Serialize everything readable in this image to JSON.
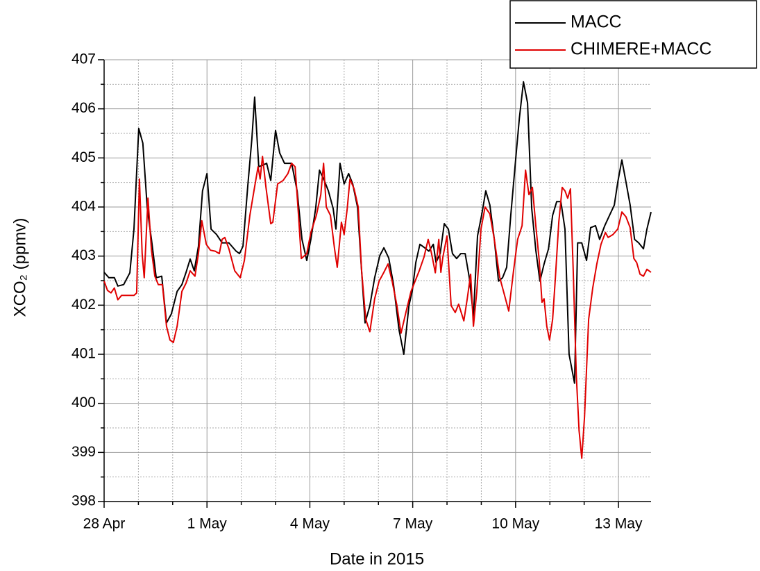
{
  "chart_data": {
    "type": "line",
    "x_label": "Date in 2015",
    "y_label": "XCO₂ (ppmv)",
    "xlim": [
      0,
      15.95
    ],
    "ylim": [
      398,
      407
    ],
    "xticks": [
      {
        "value": 0,
        "label": "28 Apr"
      },
      {
        "value": 3,
        "label": "1 May"
      },
      {
        "value": 6,
        "label": "4 May"
      },
      {
        "value": 9,
        "label": "7 May"
      },
      {
        "value": 12,
        "label": "10 May"
      },
      {
        "value": 15,
        "label": "13 May"
      }
    ],
    "yticks": [
      398,
      399,
      400,
      401,
      402,
      403,
      404,
      405,
      406,
      407
    ],
    "minor_xticks": [
      1,
      2,
      4,
      5,
      7,
      8,
      10,
      11,
      13,
      14
    ],
    "minor_yticks": [
      398.5,
      399.5,
      400.5,
      401.5,
      402.5,
      403.5,
      404.5,
      405.5,
      406.5
    ],
    "grid": true,
    "legend": "top-right",
    "series": [
      {
        "name": "MACC",
        "color": "#000000",
        "x": [
          0,
          0.14,
          0.3,
          0.4,
          0.57,
          0.75,
          0.87,
          1.01,
          1.13,
          1.26,
          1.38,
          1.52,
          1.68,
          1.82,
          1.96,
          2.13,
          2.27,
          2.39,
          2.51,
          2.63,
          2.75,
          2.87,
          3.0,
          3.12,
          3.28,
          3.44,
          3.64,
          3.85,
          3.95,
          4.05,
          4.19,
          4.31,
          4.39,
          4.51,
          4.62,
          4.74,
          4.86,
          5.0,
          5.12,
          5.26,
          5.47,
          5.63,
          5.77,
          5.91,
          6.03,
          6.17,
          6.28,
          6.42,
          6.54,
          6.68,
          6.76,
          6.88,
          7.0,
          7.13,
          7.25,
          7.39,
          7.49,
          7.61,
          7.75,
          7.89,
          8.04,
          8.16,
          8.3,
          8.44,
          8.6,
          8.74,
          8.89,
          8.99,
          9.09,
          9.21,
          9.35,
          9.47,
          9.6,
          9.68,
          9.8,
          9.92,
          10.04,
          10.16,
          10.28,
          10.4,
          10.53,
          10.65,
          10.77,
          10.89,
          11.01,
          11.13,
          11.25,
          11.38,
          11.5,
          11.62,
          11.74,
          11.86,
          12.0,
          12.11,
          12.23,
          12.35,
          12.47,
          12.59,
          12.71,
          12.83,
          12.96,
          13.08,
          13.2,
          13.32,
          13.44,
          13.56,
          13.72,
          13.81,
          13.93,
          14.07,
          14.19,
          14.33,
          14.45,
          14.6,
          14.74,
          14.88,
          14.98,
          15.1,
          15.22,
          15.34,
          15.47,
          15.59,
          15.73,
          15.83,
          15.95
        ],
        "values": [
          402.67,
          402.56,
          402.56,
          402.39,
          402.42,
          402.66,
          403.55,
          405.6,
          405.3,
          403.97,
          403.34,
          402.56,
          402.59,
          401.64,
          401.82,
          402.28,
          402.42,
          402.67,
          402.94,
          402.7,
          403.2,
          404.33,
          404.68,
          403.55,
          403.44,
          403.27,
          403.27,
          403.1,
          403.05,
          403.2,
          404.43,
          405.39,
          406.24,
          404.82,
          404.85,
          404.89,
          404.54,
          405.56,
          405.1,
          404.89,
          404.89,
          404.33,
          403.34,
          402.91,
          403.34,
          403.97,
          404.75,
          404.54,
          404.33,
          403.97,
          403.55,
          404.89,
          404.47,
          404.68,
          404.47,
          404.0,
          402.91,
          401.64,
          401.99,
          402.56,
          403.01,
          403.17,
          402.96,
          402.42,
          401.5,
          401.0,
          401.99,
          402.3,
          402.87,
          403.24,
          403.17,
          403.1,
          403.24,
          402.87,
          403.05,
          403.66,
          403.55,
          403.05,
          402.95,
          403.05,
          403.05,
          402.56,
          401.78,
          403.41,
          403.83,
          404.33,
          404.04,
          403.34,
          402.49,
          402.56,
          402.77,
          403.83,
          404.96,
          405.81,
          406.55,
          406.12,
          403.97,
          403.12,
          402.49,
          402.84,
          403.15,
          403.83,
          404.11,
          404.11,
          403.55,
          401.0,
          400.41,
          403.27,
          403.27,
          402.91,
          403.58,
          403.62,
          403.34,
          403.62,
          403.83,
          404.04,
          404.51,
          404.96,
          404.51,
          404.04,
          403.34,
          403.27,
          403.15,
          403.55,
          403.9
        ]
      },
      {
        "name": "CHIMERE+MACC",
        "color": "#e00000",
        "x": [
          0,
          0.1,
          0.2,
          0.3,
          0.4,
          0.51,
          0.61,
          0.75,
          0.87,
          0.95,
          1.03,
          1.11,
          1.17,
          1.28,
          1.38,
          1.48,
          1.58,
          1.7,
          1.82,
          1.92,
          2.02,
          2.13,
          2.27,
          2.39,
          2.51,
          2.65,
          2.75,
          2.85,
          2.98,
          3.1,
          3.24,
          3.36,
          3.44,
          3.52,
          3.64,
          3.81,
          3.97,
          4.09,
          4.25,
          4.37,
          4.49,
          4.55,
          4.62,
          4.72,
          4.86,
          4.92,
          5.06,
          5.22,
          5.36,
          5.47,
          5.57,
          5.67,
          5.75,
          5.91,
          6.03,
          6.19,
          6.32,
          6.4,
          6.48,
          6.6,
          6.72,
          6.8,
          6.92,
          7.0,
          7.09,
          7.17,
          7.29,
          7.41,
          7.51,
          7.63,
          7.75,
          7.89,
          8.02,
          8.16,
          8.28,
          8.4,
          8.54,
          8.66,
          8.8,
          8.95,
          9.07,
          9.19,
          9.33,
          9.45,
          9.55,
          9.66,
          9.76,
          9.82,
          9.88,
          10.0,
          10.12,
          10.24,
          10.34,
          10.49,
          10.59,
          10.69,
          10.77,
          10.87,
          10.99,
          11.11,
          11.25,
          11.38,
          11.54,
          11.68,
          11.8,
          11.94,
          12.06,
          12.19,
          12.29,
          12.39,
          12.49,
          12.59,
          12.69,
          12.77,
          12.83,
          12.91,
          12.99,
          13.08,
          13.16,
          13.26,
          13.36,
          13.44,
          13.52,
          13.6,
          13.68,
          13.77,
          13.85,
          13.93,
          14.01,
          14.13,
          14.25,
          14.37,
          14.49,
          14.62,
          14.7,
          14.84,
          14.98,
          15.1,
          15.22,
          15.34,
          15.45,
          15.53,
          15.63,
          15.73,
          15.83,
          15.95
        ],
        "values": [
          402.49,
          402.3,
          402.25,
          402.35,
          402.11,
          402.2,
          402.2,
          402.2,
          402.2,
          402.25,
          404.57,
          403.05,
          402.56,
          404.18,
          403.12,
          402.59,
          402.42,
          402.42,
          401.57,
          401.29,
          401.24,
          401.57,
          402.28,
          402.45,
          402.7,
          402.59,
          403.05,
          403.72,
          403.24,
          403.12,
          403.1,
          403.05,
          403.34,
          403.38,
          403.15,
          402.7,
          402.56,
          402.91,
          403.83,
          404.33,
          404.82,
          404.57,
          405.03,
          404.4,
          403.66,
          403.69,
          404.47,
          404.54,
          404.68,
          404.89,
          404.82,
          403.83,
          402.95,
          403.05,
          403.48,
          403.83,
          404.25,
          404.89,
          404.0,
          403.83,
          403.15,
          402.77,
          403.69,
          403.44,
          403.97,
          404.57,
          404.37,
          404.0,
          402.7,
          401.71,
          401.46,
          402.13,
          402.49,
          402.67,
          402.84,
          402.49,
          401.99,
          401.43,
          401.85,
          402.28,
          402.49,
          402.7,
          402.98,
          403.34,
          403.05,
          402.66,
          403.34,
          402.67,
          402.98,
          403.41,
          401.99,
          401.85,
          402.02,
          401.68,
          402.13,
          402.63,
          401.57,
          402.28,
          403.55,
          404.0,
          403.86,
          403.34,
          402.56,
          402.2,
          401.88,
          402.7,
          403.34,
          403.62,
          404.75,
          404.25,
          404.4,
          403.62,
          402.91,
          402.06,
          402.13,
          401.57,
          401.29,
          401.71,
          402.56,
          403.69,
          404.4,
          404.33,
          404.18,
          404.37,
          402.7,
          400.58,
          399.45,
          398.88,
          399.73,
          401.71,
          402.35,
          402.84,
          403.24,
          403.48,
          403.38,
          403.44,
          403.55,
          403.9,
          403.8,
          403.58,
          402.95,
          402.87,
          402.63,
          402.59,
          402.73,
          402.67
        ]
      }
    ]
  }
}
